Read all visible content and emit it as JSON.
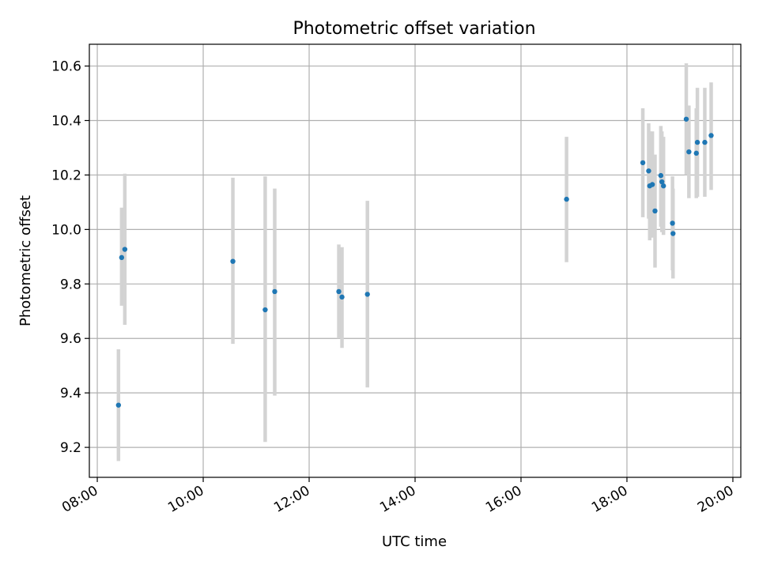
{
  "chart_data": {
    "type": "scatter",
    "title": "Photometric offset variation",
    "xlabel": "UTC time",
    "ylabel": "Photometric offset",
    "x_unit": "hours UTC",
    "xlim": [
      7.85,
      20.15
    ],
    "ylim": [
      9.09,
      10.68
    ],
    "x_ticks": [
      {
        "value": 8,
        "label": "08:00"
      },
      {
        "value": 10,
        "label": "10:00"
      },
      {
        "value": 12,
        "label": "12:00"
      },
      {
        "value": 14,
        "label": "14:00"
      },
      {
        "value": 16,
        "label": "16:00"
      },
      {
        "value": 18,
        "label": "18:00"
      },
      {
        "value": 20,
        "label": "20:00"
      }
    ],
    "y_ticks": [
      {
        "value": 9.2,
        "label": "9.2"
      },
      {
        "value": 9.4,
        "label": "9.4"
      },
      {
        "value": 9.6,
        "label": "9.6"
      },
      {
        "value": 9.8,
        "label": "9.8"
      },
      {
        "value": 10.0,
        "label": "10.0"
      },
      {
        "value": 10.2,
        "label": "10.2"
      },
      {
        "value": 10.4,
        "label": "10.4"
      },
      {
        "value": 10.6,
        "label": "10.6"
      }
    ],
    "grid": true,
    "marker_color": "#1f77b4",
    "errorbar_color": "#d3d3d3",
    "points": [
      {
        "x": 8.4,
        "y": 9.355,
        "yerr_low": 9.15,
        "yerr_high": 9.56
      },
      {
        "x": 8.46,
        "y": 9.897,
        "yerr_low": 9.72,
        "yerr_high": 10.08
      },
      {
        "x": 8.52,
        "y": 9.927,
        "yerr_low": 9.65,
        "yerr_high": 10.205
      },
      {
        "x": 10.56,
        "y": 9.883,
        "yerr_low": 9.58,
        "yerr_high": 10.19
      },
      {
        "x": 11.17,
        "y": 9.705,
        "yerr_low": 9.22,
        "yerr_high": 10.195
      },
      {
        "x": 11.35,
        "y": 9.772,
        "yerr_low": 9.39,
        "yerr_high": 10.15
      },
      {
        "x": 12.56,
        "y": 9.772,
        "yerr_low": 9.6,
        "yerr_high": 9.945
      },
      {
        "x": 12.62,
        "y": 9.752,
        "yerr_low": 9.565,
        "yerr_high": 9.935
      },
      {
        "x": 13.1,
        "y": 9.762,
        "yerr_low": 9.42,
        "yerr_high": 10.105
      },
      {
        "x": 16.86,
        "y": 10.111,
        "yerr_low": 9.88,
        "yerr_high": 10.34
      },
      {
        "x": 18.3,
        "y": 10.245,
        "yerr_low": 10.045,
        "yerr_high": 10.445
      },
      {
        "x": 18.41,
        "y": 10.215,
        "yerr_low": 10.04,
        "yerr_high": 10.39
      },
      {
        "x": 18.43,
        "y": 10.16,
        "yerr_low": 9.96,
        "yerr_high": 10.36
      },
      {
        "x": 18.48,
        "y": 10.165,
        "yerr_low": 9.97,
        "yerr_high": 10.36
      },
      {
        "x": 18.53,
        "y": 10.068,
        "yerr_low": 9.86,
        "yerr_high": 10.275
      },
      {
        "x": 18.64,
        "y": 10.198,
        "yerr_low": 10.01,
        "yerr_high": 10.38
      },
      {
        "x": 18.66,
        "y": 10.175,
        "yerr_low": 9.99,
        "yerr_high": 10.36
      },
      {
        "x": 18.69,
        "y": 10.16,
        "yerr_low": 9.98,
        "yerr_high": 10.34
      },
      {
        "x": 18.86,
        "y": 10.023,
        "yerr_low": 9.85,
        "yerr_high": 10.195
      },
      {
        "x": 18.87,
        "y": 9.985,
        "yerr_low": 9.82,
        "yerr_high": 10.15
      },
      {
        "x": 19.12,
        "y": 10.405,
        "yerr_low": 10.2,
        "yerr_high": 10.61
      },
      {
        "x": 19.17,
        "y": 10.285,
        "yerr_low": 10.115,
        "yerr_high": 10.455
      },
      {
        "x": 19.31,
        "y": 10.28,
        "yerr_low": 10.115,
        "yerr_high": 10.445
      },
      {
        "x": 19.33,
        "y": 10.32,
        "yerr_low": 10.12,
        "yerr_high": 10.52
      },
      {
        "x": 19.47,
        "y": 10.32,
        "yerr_low": 10.12,
        "yerr_high": 10.52
      },
      {
        "x": 19.59,
        "y": 10.345,
        "yerr_low": 10.145,
        "yerr_high": 10.54
      }
    ]
  }
}
